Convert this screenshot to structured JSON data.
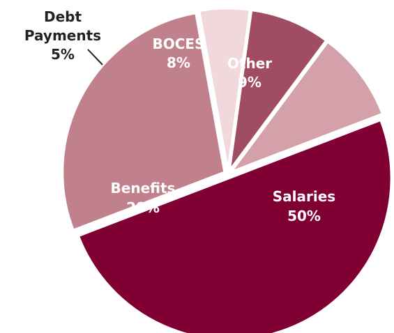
{
  "chart_data": {
    "type": "pie",
    "title": "",
    "slices": [
      {
        "label": "Salaries",
        "pct_label": "50%",
        "value": 50,
        "color": "#800034"
      },
      {
        "label": "Benefits",
        "pct_label": "28%",
        "value": 28,
        "color": "#c0808c"
      },
      {
        "label": "Debt Payments",
        "label_lines": [
          "Debt",
          "Payments"
        ],
        "pct_label": "5%",
        "value": 5,
        "color": "#f0d8dc"
      },
      {
        "label": "BOCES",
        "pct_label": "8%",
        "value": 8,
        "color": "#a04c62"
      },
      {
        "label": "Other",
        "pct_label": "9%",
        "value": 9,
        "color": "#d4a0aa"
      }
    ]
  }
}
